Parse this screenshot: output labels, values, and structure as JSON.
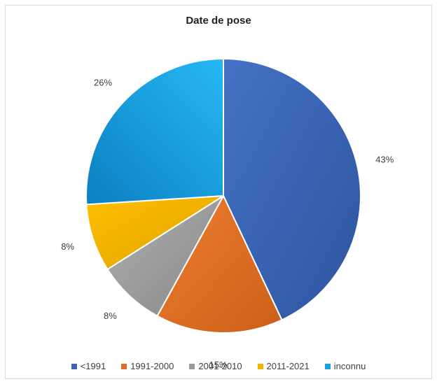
{
  "chart_data": {
    "type": "pie",
    "title": "Date de pose",
    "categories": [
      "<1991",
      "1991-2000",
      "2001-2010",
      "2011-2021",
      "inconnu"
    ],
    "values": [
      43,
      15,
      8,
      8,
      26
    ],
    "labels": [
      "43%",
      "15%",
      "8%",
      "8%",
      "26%"
    ],
    "colors": [
      "#3a64b4",
      "#e06d21",
      "#9b9b9b",
      "#f0b400",
      "#1aa3e0"
    ],
    "legend_position": "bottom"
  }
}
